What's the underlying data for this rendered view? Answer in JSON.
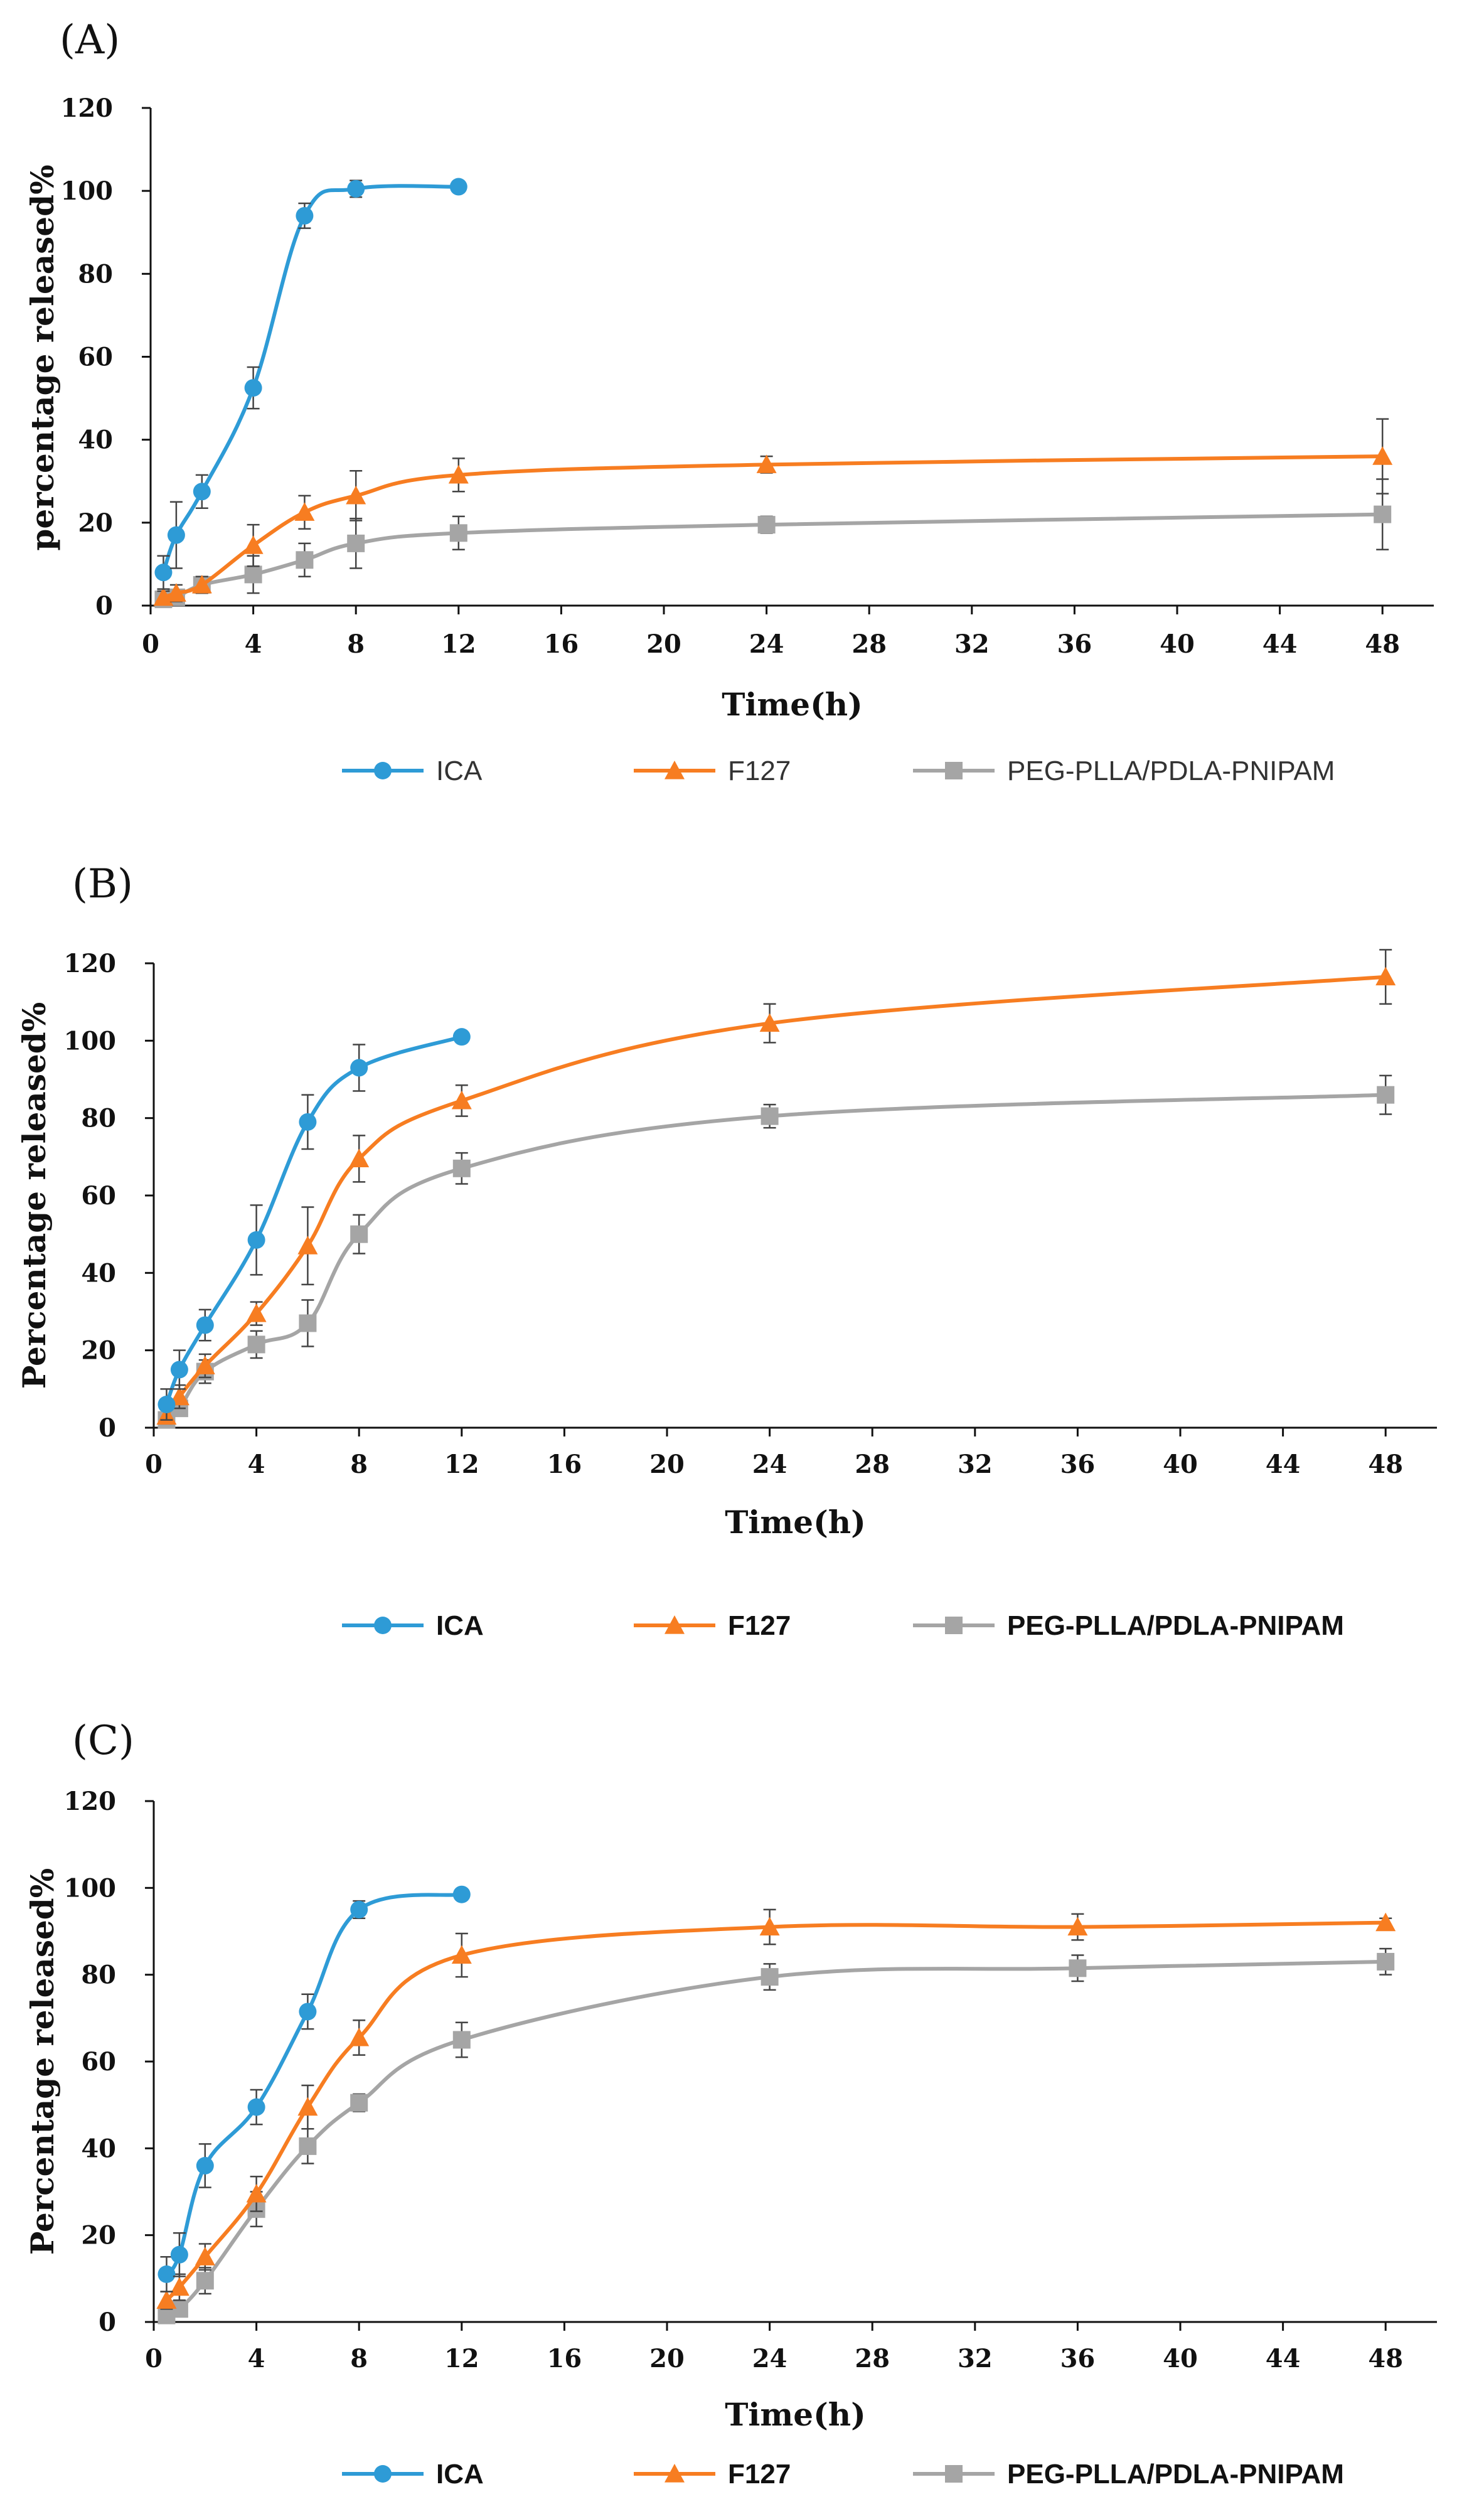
{
  "colors": {
    "ICA": "#2E9BD6",
    "F127": "#F77D21",
    "PEG-PLLA/PDLA-PNIPAM": "#A5A5A5",
    "axis": "#111111",
    "errorbar": "#444444"
  },
  "chart_data": [
    {
      "panel": "(A)",
      "type": "line",
      "xlabel": "Time(h)",
      "ylabel": "percentage released%",
      "xlim": [
        0,
        50
      ],
      "ylim": [
        0,
        120
      ],
      "xticks": [
        0,
        4,
        8,
        12,
        16,
        20,
        24,
        28,
        32,
        36,
        40,
        44,
        48
      ],
      "yticks": [
        0,
        20,
        40,
        60,
        80,
        100,
        120
      ],
      "legend": "bottom",
      "grid": false,
      "series": [
        {
          "name": "ICA",
          "marker": "circle",
          "x": [
            0.5,
            1,
            2,
            4,
            6,
            8,
            12
          ],
          "y": [
            8,
            17,
            27.5,
            52.5,
            94,
            100.5,
            101
          ],
          "err": [
            4,
            8,
            4,
            5,
            3,
            2,
            0.5
          ]
        },
        {
          "name": "F127",
          "marker": "triangle",
          "x": [
            0.5,
            1,
            2,
            4,
            6,
            8,
            12,
            24,
            48
          ],
          "y": [
            2,
            3,
            5,
            14.5,
            22.5,
            26.5,
            31.5,
            34,
            36
          ],
          "err": [
            1.5,
            2,
            2,
            5,
            4,
            6,
            4,
            2,
            9
          ]
        },
        {
          "name": "PEG-PLLA/PDLA-PNIPAM",
          "marker": "square",
          "x": [
            0.5,
            1,
            2,
            4,
            6,
            8,
            12,
            24,
            48
          ],
          "y": [
            1.5,
            2,
            5,
            7.5,
            11,
            15,
            17.5,
            19.5,
            22
          ],
          "err": [
            1,
            1.5,
            2,
            4.5,
            4,
            6,
            4,
            2,
            8.5
          ]
        }
      ]
    },
    {
      "panel": "(B)",
      "type": "line",
      "xlabel": "Time(h)",
      "ylabel": "Percentage released%",
      "xlim": [
        0,
        50
      ],
      "ylim": [
        0,
        120
      ],
      "xticks": [
        0,
        4,
        8,
        12,
        16,
        20,
        24,
        28,
        32,
        36,
        40,
        44,
        48
      ],
      "yticks": [
        0,
        20,
        40,
        60,
        80,
        100,
        120
      ],
      "legend": "bottom",
      "grid": false,
      "series": [
        {
          "name": "ICA",
          "marker": "circle",
          "x": [
            0.5,
            1,
            2,
            4,
            6,
            8,
            12
          ],
          "y": [
            6,
            15,
            26.5,
            48.5,
            79,
            93,
            101
          ],
          "err": [
            4,
            5,
            4,
            9,
            7,
            6,
            1
          ]
        },
        {
          "name": "F127",
          "marker": "triangle",
          "x": [
            0.5,
            1,
            2,
            4,
            6,
            8,
            12,
            24,
            48
          ],
          "y": [
            3,
            8,
            16,
            29.5,
            47,
            69.5,
            84.5,
            104.5,
            116.5
          ],
          "err": [
            2,
            3,
            3,
            3,
            10,
            6,
            4,
            5,
            7
          ]
        },
        {
          "name": "PEG-PLLA/PDLA-PNIPAM",
          "marker": "square",
          "x": [
            0.5,
            1,
            2,
            4,
            6,
            8,
            12,
            24,
            48
          ],
          "y": [
            2,
            5,
            14.5,
            21.5,
            27,
            50,
            67,
            80.5,
            86
          ],
          "err": [
            1,
            2,
            3,
            3.5,
            6,
            5,
            4,
            3,
            5
          ]
        }
      ]
    },
    {
      "panel": "(C)",
      "type": "line",
      "xlabel": "Time(h)",
      "ylabel": "Percentage released%",
      "xlim": [
        0,
        50
      ],
      "ylim": [
        0,
        120
      ],
      "xticks": [
        0,
        4,
        8,
        12,
        16,
        20,
        24,
        28,
        32,
        36,
        40,
        44,
        48
      ],
      "yticks": [
        0,
        20,
        40,
        60,
        80,
        100,
        120
      ],
      "legend": "bottom",
      "grid": false,
      "series": [
        {
          "name": "ICA",
          "marker": "circle",
          "x": [
            0.5,
            1,
            2,
            4,
            6,
            8,
            12
          ],
          "y": [
            11,
            15.5,
            36,
            49.5,
            71.5,
            95,
            98.5
          ],
          "err": [
            4,
            5,
            5,
            4,
            4,
            2,
            0.5
          ]
        },
        {
          "name": "F127",
          "marker": "triangle",
          "x": [
            0.5,
            1,
            2,
            4,
            6,
            8,
            12,
            24,
            36,
            48
          ],
          "y": [
            5,
            8,
            15,
            29.5,
            49.5,
            65.5,
            84.5,
            91,
            91,
            92
          ],
          "err": [
            2,
            3,
            3,
            4,
            5,
            4,
            5,
            4,
            3,
            1
          ]
        },
        {
          "name": "PEG-PLLA/PDLA-PNIPAM",
          "marker": "square",
          "x": [
            0.5,
            1,
            2,
            4,
            6,
            8,
            12,
            24,
            36,
            48
          ],
          "y": [
            1.5,
            3,
            9.5,
            26,
            40.5,
            50.5,
            65,
            79.5,
            81.5,
            83
          ],
          "err": [
            1,
            1.5,
            3,
            4,
            4,
            2,
            4,
            3,
            3,
            3
          ]
        }
      ]
    }
  ]
}
